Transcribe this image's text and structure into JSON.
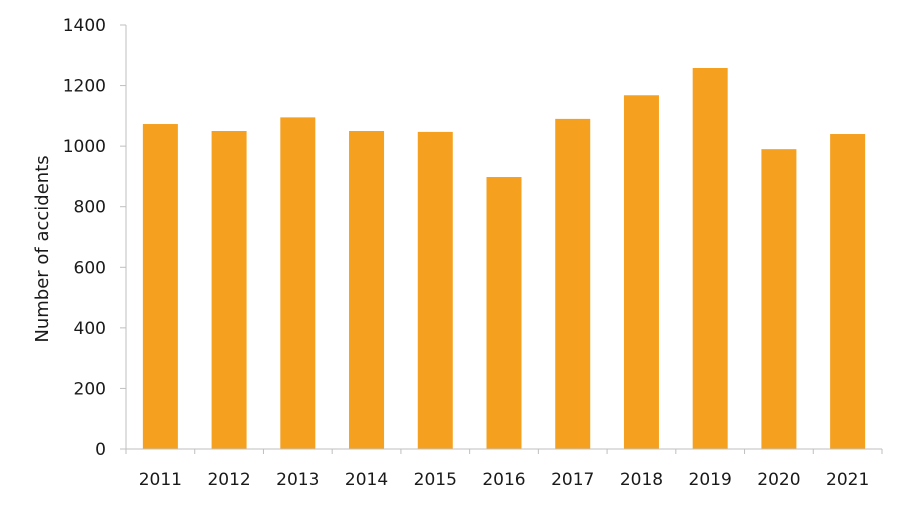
{
  "chart_data": {
    "type": "bar",
    "title": "",
    "xlabel": "",
    "ylabel": "Number of accidents",
    "categories": [
      "2011",
      "2012",
      "2013",
      "2014",
      "2015",
      "2016",
      "2017",
      "2018",
      "2019",
      "2020",
      "2021"
    ],
    "values": [
      1073,
      1050,
      1095,
      1050,
      1047,
      898,
      1090,
      1168,
      1258,
      990,
      1040
    ],
    "ylim": [
      0,
      1400
    ],
    "yticks": [
      0,
      200,
      400,
      600,
      800,
      1000,
      1200,
      1400
    ],
    "grid": false,
    "legend": "none",
    "colors": {
      "bar": "#F5A01E",
      "axis": "#bfbfbf",
      "text": "#1a1a1a"
    }
  }
}
